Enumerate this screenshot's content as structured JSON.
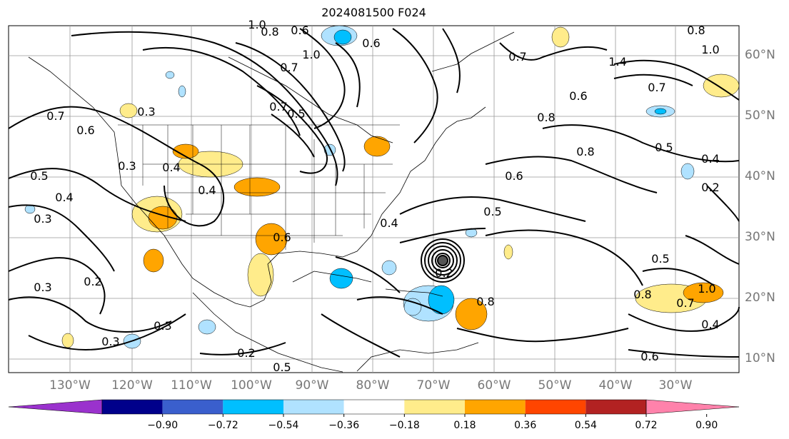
{
  "title": "2024081500 F024",
  "longitude_labels": [
    "130°W",
    "120°W",
    "110°W",
    "100°W",
    "90°W",
    "80°W",
    "70°W",
    "60°W",
    "50°W",
    "40°W",
    "30°W"
  ],
  "latitude_labels": [
    "60°N",
    "50°N",
    "40°N",
    "30°N",
    "20°N",
    "10°N"
  ],
  "contour_labels": [
    "0.8",
    "0.6",
    "0.6",
    "1.0",
    "0.7",
    "0.7",
    "0.5",
    "1.0",
    "0.8",
    "1.0",
    "1.4",
    "0.7",
    "0.7",
    "0.6",
    "0.8",
    "0.6",
    "0.3",
    "0.7",
    "0.8",
    "0.5",
    "0.4",
    "0.3",
    "0.4",
    "0.5",
    "0.4",
    "0.4",
    "0.6",
    "0.2",
    "0.3",
    "0.4",
    "0.5",
    "0.6",
    "0.2",
    "0.3",
    "0.3",
    "0.3",
    "0.2",
    "0.5",
    "0.5",
    "0.8",
    "1.0",
    "0.7",
    "0.4",
    "0.6",
    "0.2",
    "0.8"
  ],
  "colorbar": {
    "ticks": [
      "−0.90",
      "−0.72",
      "−0.54",
      "−0.36",
      "−0.18",
      "0.18",
      "0.36",
      "0.54",
      "0.72",
      "0.90"
    ],
    "colors": [
      "#9a32cd",
      "#00008b",
      "#3a5fcd",
      "#00bfff",
      "#b0e2ff",
      "#ffffff",
      "#ffec8b",
      "#ffa500",
      "#ff4500",
      "#b22222",
      "#ff82ab"
    ]
  }
}
